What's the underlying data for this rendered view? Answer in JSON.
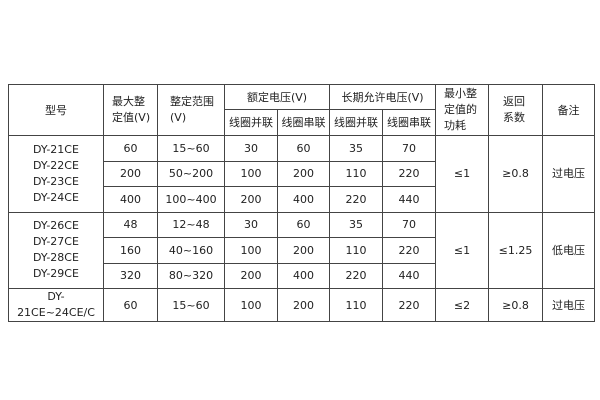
{
  "header": {
    "model": "型号",
    "max_setting": [
      "最大整",
      "定值(V)"
    ],
    "setting_range": [
      "整定范围",
      "(V)"
    ],
    "rated_voltage": "额定电压(V)",
    "long_term_voltage": "长期允许电压(V)",
    "coil_parallel": "线圈并联",
    "coil_series": "线圈串联",
    "min_power": [
      "最小整",
      "定值的",
      "功耗"
    ],
    "return_coef": [
      "返回",
      "系数"
    ],
    "remark": "备注"
  },
  "groups": [
    {
      "models": [
        "DY-21CE",
        "DY-22CE",
        "DY-23CE",
        "DY-24CE"
      ],
      "power": "≤1",
      "coef": "≥0.8",
      "remark": "过电压",
      "rows": [
        {
          "max": "60",
          "range": "15~60",
          "rp": "30",
          "rs": "60",
          "lp": "35",
          "ls": "70"
        },
        {
          "max": "200",
          "range": "50~200",
          "rp": "100",
          "rs": "200",
          "lp": "110",
          "ls": "220"
        },
        {
          "max": "400",
          "range": "100~400",
          "rp": "200",
          "rs": "400",
          "lp": "220",
          "ls": "440"
        }
      ]
    },
    {
      "models": [
        "DY-26CE",
        "DY-27CE",
        "DY-28CE",
        "DY-29CE"
      ],
      "power": "≤1",
      "coef": "≤1.25",
      "remark": "低电压",
      "rows": [
        {
          "max": "48",
          "range": "12~48",
          "rp": "30",
          "rs": "60",
          "lp": "35",
          "ls": "70"
        },
        {
          "max": "160",
          "range": "40~160",
          "rp": "100",
          "rs": "200",
          "lp": "110",
          "ls": "220"
        },
        {
          "max": "320",
          "range": "80~320",
          "rp": "200",
          "rs": "400",
          "lp": "220",
          "ls": "440"
        }
      ]
    },
    {
      "models": [
        "DY-21CE~24CE/C"
      ],
      "power": "≤2",
      "coef": "≥0.8",
      "remark": "过电压",
      "rows": [
        {
          "max": "60",
          "range": "15~60",
          "rp": "100",
          "rs": "200",
          "lp": "110",
          "ls": "220"
        }
      ]
    }
  ]
}
